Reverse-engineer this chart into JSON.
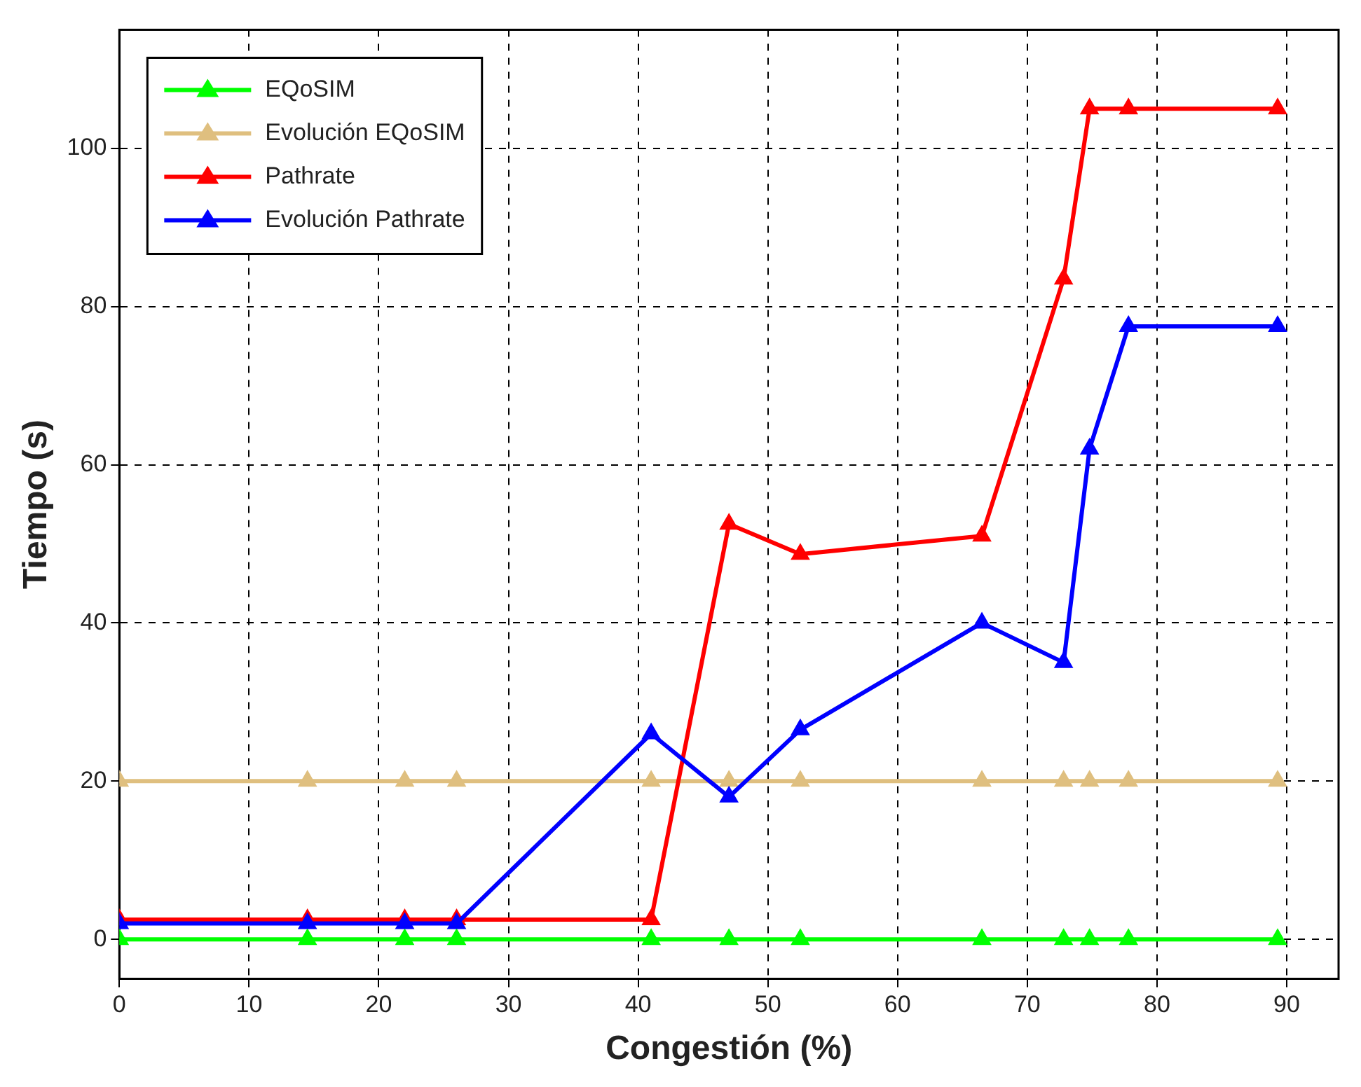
{
  "chart_data": {
    "type": "line",
    "xlabel": "Congestión (%)",
    "ylabel": "Tiempo (s)",
    "xlim": [
      0,
      94
    ],
    "xticks": [
      0,
      10,
      20,
      30,
      40,
      50,
      60,
      70,
      80,
      90
    ],
    "ylim": [
      -5,
      115
    ],
    "yticks": [
      0,
      20,
      40,
      60,
      80,
      100
    ],
    "grid": true,
    "legend": "top left",
    "marker": "triangle",
    "line_style": "solid",
    "x": [
      0,
      14.5,
      22,
      26,
      41,
      47,
      52.5,
      66.5,
      72.8,
      74.8,
      77.8,
      89.3
    ],
    "series": [
      {
        "name": "EQoSIM",
        "color": "#00ff00",
        "values": [
          0,
          0,
          0,
          0,
          0,
          0,
          0,
          0,
          0,
          0,
          0,
          0
        ]
      },
      {
        "name": "Evolución EQoSIM",
        "color": "#dfbf7f",
        "values": [
          20,
          20,
          20,
          20,
          20,
          20,
          20,
          20,
          20,
          20,
          20,
          20
        ]
      },
      {
        "name": "Pathrate",
        "color": "#ff0000",
        "values": [
          2.5,
          2.5,
          2.5,
          2.5,
          2.5,
          52.5,
          48.7,
          51,
          83.5,
          105,
          105,
          105
        ]
      },
      {
        "name": "Evolución Pathrate",
        "color": "#0000ff",
        "values": [
          2,
          2,
          2,
          2,
          26,
          18,
          26.5,
          40,
          35,
          62,
          77.5,
          77.5
        ]
      }
    ]
  }
}
